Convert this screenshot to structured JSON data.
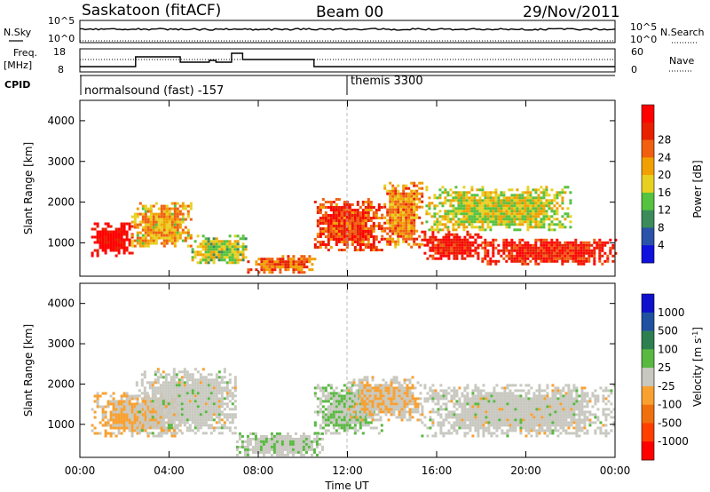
{
  "header": {
    "station": "Saskatoon (fitACF)",
    "beam": "Beam 00",
    "date": "29/Nov/2011"
  },
  "noise_panel": {
    "left_label": "N.Sky",
    "right_label": "N.Search",
    "left_ticks": [
      "10^5",
      "10^0"
    ],
    "right_ticks": [
      "10^5",
      "10^0"
    ]
  },
  "freq_panel": {
    "left_label_line1": "Freq.",
    "left_label_line2": "[MHz]",
    "right_label": "Nave",
    "left_ticks": [
      "18",
      "8"
    ],
    "right_ticks": [
      "60",
      "0"
    ]
  },
  "cpid_panel": {
    "label": "CPID",
    "modes": [
      {
        "name": "normalsound (fast) -157",
        "start_hour": 0
      },
      {
        "name": "themis 3300",
        "start_hour": 12
      }
    ]
  },
  "chart_data": [
    {
      "type": "heatmap",
      "panel": "power",
      "ylabel": "Slant Range [km]",
      "yticks": [
        "1000",
        "2000",
        "3000",
        "4000"
      ],
      "ylim": [
        180,
        4500
      ],
      "xlim": [
        0,
        24
      ],
      "colorbar_label": "Power [dB]",
      "colorbar_ticks": [
        "4",
        "8",
        "12",
        "16",
        "20",
        "24",
        "28"
      ],
      "colorbar_colors": [
        "#1111dd",
        "#2a52a8",
        "#3b8c5a",
        "#55c240",
        "#e8d020",
        "#f0a000",
        "#f06010",
        "#e82000",
        "#ff0000"
      ],
      "colorbar_range": [
        0,
        30
      ],
      "regions": [
        {
          "t0": 0.5,
          "t1": 2.3,
          "r0": 700,
          "r1": 1500,
          "value": 29
        },
        {
          "t0": 2.3,
          "t1": 5.0,
          "r0": 900,
          "r1": 2000,
          "value": 18
        },
        {
          "t0": 5.0,
          "t1": 7.5,
          "r0": 500,
          "r1": 1200,
          "value": 14
        },
        {
          "t0": 7.5,
          "t1": 10.5,
          "r0": 300,
          "r1": 700,
          "value": 22
        },
        {
          "t0": 10.5,
          "t1": 13.5,
          "r0": 800,
          "r1": 2100,
          "value": 24
        },
        {
          "t0": 13.5,
          "t1": 15.3,
          "r0": 900,
          "r1": 2500,
          "value": 20
        },
        {
          "t0": 15.3,
          "t1": 18.0,
          "r0": 600,
          "r1": 1300,
          "value": 27
        },
        {
          "t0": 18.0,
          "t1": 24.0,
          "r0": 500,
          "r1": 1100,
          "value": 26
        },
        {
          "t0": 15.5,
          "t1": 22.0,
          "r0": 1300,
          "r1": 2400,
          "value": 15
        }
      ]
    },
    {
      "type": "heatmap",
      "panel": "velocity",
      "ylabel": "Slant Range [km]",
      "yticks": [
        "1000",
        "2000",
        "3000",
        "4000"
      ],
      "ylim": [
        180,
        4500
      ],
      "xlim": [
        0,
        24
      ],
      "xticks": [
        "00:00",
        "04:00",
        "08:00",
        "12:00",
        "16:00",
        "20:00",
        "00:00"
      ],
      "xlabel": "Time UT",
      "colorbar_label": "Velocity [m s^-1]",
      "colorbar_ticks": [
        "-1000",
        "-500",
        "-100",
        "-25",
        "25",
        "100",
        "500",
        "1000"
      ],
      "colorbar_colors": [
        "#ff0000",
        "#ff4000",
        "#f07010",
        "#f8a030",
        "#c8c8c0",
        "#58b840",
        "#2e7f50",
        "#2050a0",
        "#1010cc"
      ],
      "colorbar_range": [
        -1200,
        1200
      ],
      "regions": [
        {
          "t0": 0.5,
          "t1": 4.5,
          "r0": 700,
          "r1": 1800,
          "value": -150
        },
        {
          "t0": 2.5,
          "t1": 7.0,
          "r0": 800,
          "r1": 2400,
          "value": 0
        },
        {
          "t0": 7.0,
          "t1": 11.0,
          "r0": 250,
          "r1": 800,
          "value": 60
        },
        {
          "t0": 10.5,
          "t1": 13.5,
          "r0": 800,
          "r1": 2000,
          "value": 120
        },
        {
          "t0": 12.0,
          "t1": 15.3,
          "r0": 1100,
          "r1": 2200,
          "value": -100
        },
        {
          "t0": 15.3,
          "t1": 24.0,
          "r0": 700,
          "r1": 2000,
          "value": 0
        }
      ]
    }
  ]
}
